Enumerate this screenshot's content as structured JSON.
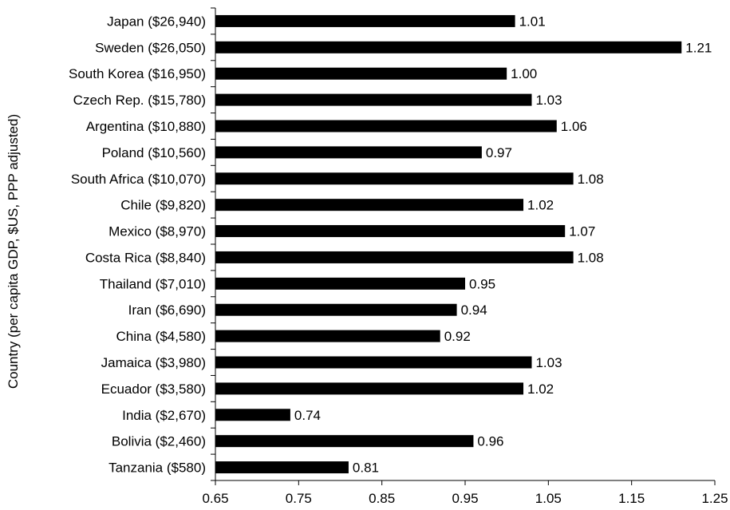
{
  "chart_data": {
    "type": "bar",
    "orientation": "horizontal",
    "ylabel": "Country (per capita GDP, $US, PPP adjusted)",
    "xlabel": "",
    "xlim": [
      0.65,
      1.25
    ],
    "x_ticks": [
      "0.65",
      "0.75",
      "0.85",
      "0.95",
      "1.05",
      "1.15",
      "1.25"
    ],
    "categories": [
      "Japan ($26,940)",
      "Sweden ($26,050)",
      "South Korea ($16,950)",
      "Czech Rep. ($15,780)",
      "Argentina ($10,880)",
      "Poland ($10,560)",
      "South Africa ($10,070)",
      "Chile ($9,820)",
      "Mexico ($8,970)",
      "Costa Rica ($8,840)",
      "Thailand ($7,010)",
      "Iran ($6,690)",
      "China ($4,580)",
      "Jamaica ($3,980)",
      "Ecuador ($3,580)",
      "India ($2,670)",
      "Bolivia ($2,460)",
      "Tanzania ($580)"
    ],
    "values": [
      1.01,
      1.21,
      1.0,
      1.03,
      1.06,
      0.97,
      1.08,
      1.02,
      1.07,
      1.08,
      0.95,
      0.94,
      0.92,
      1.03,
      1.02,
      0.74,
      0.96,
      0.81
    ],
    "value_labels": [
      "1.01",
      "1.21",
      "1.00",
      "1.03",
      "1.06",
      "0.97",
      "1.08",
      "1.02",
      "1.07",
      "1.08",
      "0.95",
      "0.94",
      "0.92",
      "1.03",
      "1.02",
      "0.74",
      "0.96",
      "0.81"
    ],
    "bar_color": "#000000",
    "grid": false,
    "legend": "none"
  }
}
